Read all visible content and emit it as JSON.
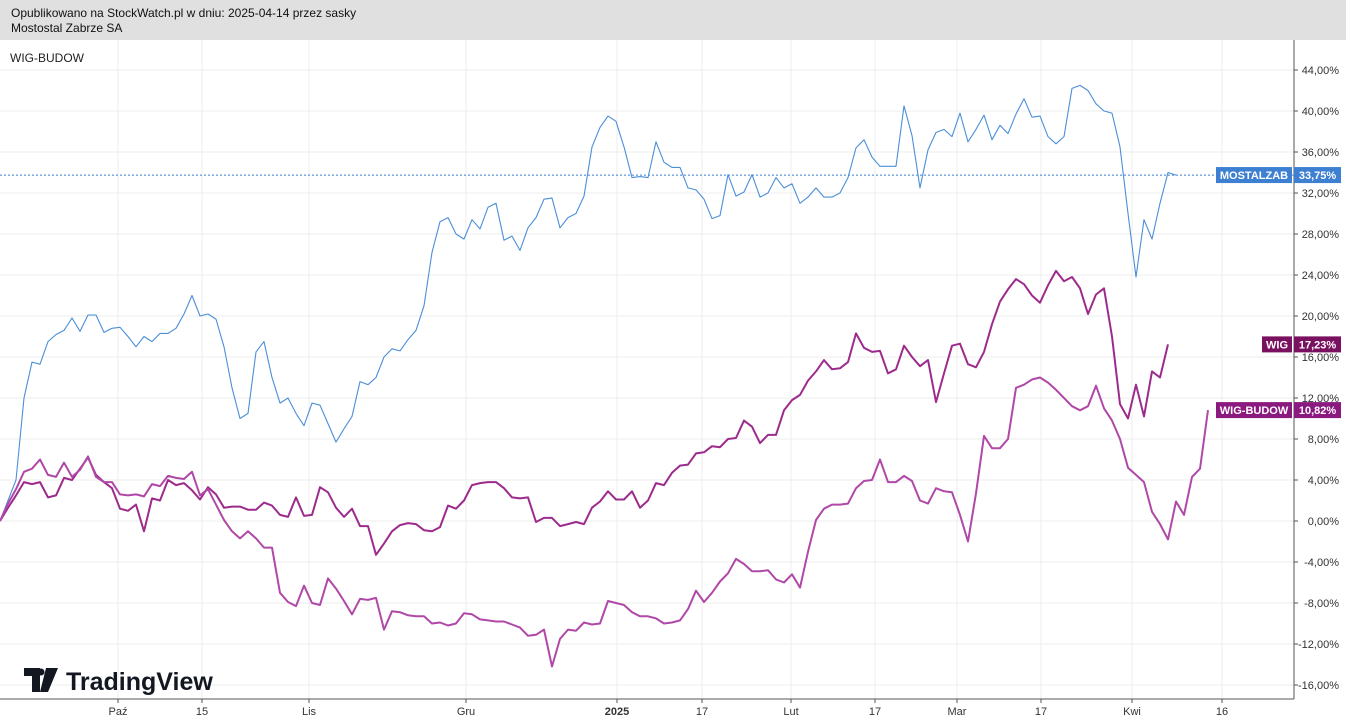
{
  "header": {
    "published": "Opublikowano na StockWatch.pl w dniu: 2025-04-14 przez sasky",
    "company": "Mostostal Zabrze SA"
  },
  "chart_label": "WIG-BUDOW",
  "watermark": "TradingView",
  "colors": {
    "mostalzab": "#4a8fd9",
    "wig": "#9c2b8c",
    "wigbudow": "#b048a8",
    "badge_mostalzab": "#3d7fd1",
    "badge_wig": "#7a1060",
    "badge_wigbudow": "#8b1a80"
  },
  "chart_data": {
    "type": "line",
    "title": "",
    "xlabel": "",
    "ylabel": "",
    "ylim": [
      -17,
      47
    ],
    "y_ticks": [
      "44,00%",
      "40,00%",
      "36,00%",
      "32,00%",
      "28,00%",
      "24,00%",
      "20,00%",
      "16,00%",
      "12,00%",
      "8,00%",
      "4,00%",
      "0,00%",
      "-4,00%",
      "-8,00%",
      "-12,00%",
      "-16,00%"
    ],
    "y_tick_values": [
      44,
      40,
      36,
      32,
      28,
      24,
      20,
      16,
      12,
      8,
      4,
      0,
      -4,
      -8,
      -12,
      -16
    ],
    "x_ticks": [
      {
        "label": "Paź",
        "index": 14,
        "bold": false
      },
      {
        "label": "15",
        "index": 24,
        "bold": false
      },
      {
        "label": "Lis",
        "index": 37,
        "bold": false
      },
      {
        "label": "Gru",
        "index": 56,
        "bold": false
      },
      {
        "label": "2025",
        "index": 75,
        "bold": true
      },
      {
        "label": "17",
        "index": 85,
        "bold": false
      },
      {
        "label": "Lut",
        "index": 96,
        "bold": false
      },
      {
        "label": "17",
        "index": 106,
        "bold": false
      },
      {
        "label": "Mar",
        "index": 116,
        "bold": false
      },
      {
        "label": "17",
        "index": 126,
        "bold": false
      },
      {
        "label": "Kwi",
        "index": 137,
        "bold": false
      },
      {
        "label": "16",
        "index": 148,
        "bold": false
      }
    ],
    "x_range": [
      0,
      157
    ],
    "series": [
      {
        "name": "MOSTALZAB",
        "last_label": "33,75%",
        "values": [
          0,
          2,
          4,
          12,
          15.5,
          15.3,
          17.5,
          18.2,
          18.6,
          19.8,
          18.5,
          20.1,
          20.1,
          18.4,
          18.8,
          18.9,
          18,
          17,
          18,
          17.5,
          18.3,
          18.3,
          18.8,
          20.2,
          22,
          20,
          20.2,
          19.7,
          17,
          13,
          10,
          10.5,
          16.5,
          17.5,
          14,
          11.5,
          12,
          10.5,
          9.3,
          11.5,
          11.3,
          9.5,
          7.7,
          9,
          10.2,
          13.6,
          13.3,
          14,
          16,
          16.8,
          16.6,
          17.7,
          18.6,
          21,
          26.2,
          29.2,
          29.6,
          28,
          27.5,
          29.4,
          28.5,
          30.6,
          31,
          27.4,
          27.8,
          26.4,
          28.6,
          29.6,
          31.4,
          31.5,
          28.6,
          29.6,
          30,
          31.7,
          36.5,
          38.4,
          39.5,
          39,
          36.5,
          33.5,
          33.6,
          33.5,
          37,
          35,
          34.5,
          34.5,
          32.5,
          32.3,
          31.4,
          29.5,
          29.8,
          33.8,
          31.7,
          32.1,
          33.8,
          31.6,
          32,
          33.5,
          32.5,
          32.9,
          31,
          31.6,
          32.5,
          31.6,
          31.6,
          32,
          33.5,
          36.4,
          37.2,
          35.5,
          34.6,
          34.6,
          34.6,
          40.5,
          37.6,
          32.5,
          36.2,
          37.9,
          38.2,
          37.5,
          39.8,
          37,
          38.2,
          39.6,
          37.2,
          38.6,
          37.8,
          39.7,
          41.2,
          39.4,
          39.5,
          37.5,
          36.8,
          37.5,
          42.2,
          42.5,
          42,
          40.7,
          40,
          39.8,
          36.5,
          30,
          23.8,
          29.4,
          27.5,
          31,
          34,
          33.75
        ]
      },
      {
        "name": "WIG",
        "last_label": "17,23%",
        "values": [
          0,
          1.3,
          2.5,
          3.8,
          3.6,
          3.8,
          2.3,
          2.5,
          4.2,
          4,
          5.1,
          6.2,
          4.5,
          3.8,
          3.2,
          1.2,
          1,
          1.6,
          -1,
          2.2,
          2,
          4,
          3.5,
          3.7,
          3,
          2.1,
          3.3,
          2.6,
          1.3,
          1.4,
          1.4,
          1.1,
          1.1,
          1.8,
          1.5,
          0.6,
          0.4,
          2.3,
          0.5,
          0.6,
          3.3,
          2.8,
          1.3,
          0.4,
          1.2,
          -0.5,
          -0.5,
          -3.3,
          -2.2,
          -1,
          -0.4,
          -0.2,
          -0.3,
          -0.9,
          -1,
          -0.6,
          1.5,
          1.2,
          2,
          3.5,
          3.7,
          3.8,
          3.8,
          3.2,
          2.3,
          2.2,
          2.3,
          -0.1,
          0.3,
          0.3,
          -0.5,
          -0.3,
          -0.1,
          -0.3,
          1.3,
          1.9,
          2.9,
          2.1,
          2.1,
          2.9,
          1.3,
          2,
          3.7,
          3.5,
          4.7,
          5.4,
          5.5,
          6.6,
          6.7,
          7.3,
          7.2,
          8,
          8.1,
          9.8,
          9.2,
          7.6,
          8.4,
          8.4,
          10.8,
          11.8,
          12.3,
          13.7,
          14.6,
          15.7,
          14.8,
          14.9,
          15.5,
          18.3,
          16.9,
          16.5,
          16.6,
          14.4,
          14.8,
          17.1,
          16,
          15.1,
          15.7,
          11.6,
          14.4,
          17.1,
          17.3,
          15.3,
          15,
          16.5,
          19.2,
          21.4,
          22.6,
          23.6,
          23.1,
          22,
          21.3,
          23,
          24.4,
          23.4,
          23.8,
          22.7,
          20.2,
          22.1,
          22.7,
          18,
          11.4,
          10,
          13.3,
          10.2,
          14.6,
          14,
          17.23
        ]
      },
      {
        "name": "WIG-BUDOW",
        "last_label": "10,82%",
        "values": [
          0,
          1.7,
          3.1,
          4.8,
          5.1,
          6,
          4.5,
          4.3,
          5.7,
          4.3,
          5,
          6.3,
          4.3,
          3.8,
          3.8,
          2.6,
          2.5,
          2.6,
          2.4,
          3.6,
          3.4,
          4.4,
          4.2,
          4.1,
          4.8,
          2.5,
          3.1,
          1.6,
          0.1,
          -1,
          -1.7,
          -1,
          -1.7,
          -2.6,
          -2.6,
          -7,
          -7.9,
          -8.3,
          -6.3,
          -8,
          -8.2,
          -5.6,
          -6.6,
          -7.8,
          -9.1,
          -7.6,
          -7.7,
          -7.5,
          -10.6,
          -8.8,
          -8.9,
          -9.2,
          -9.3,
          -9.3,
          -10,
          -9.9,
          -10.2,
          -10,
          -9,
          -9.1,
          -9.6,
          -9.7,
          -9.8,
          -9.8,
          -10.1,
          -10.4,
          -11.2,
          -11.1,
          -10.6,
          -14.2,
          -11.5,
          -10.6,
          -10.7,
          -9.9,
          -10.1,
          -10,
          -7.8,
          -8,
          -8.2,
          -8.9,
          -9.3,
          -9.3,
          -9.5,
          -10,
          -9.9,
          -9.7,
          -8.6,
          -6.8,
          -7.9,
          -7,
          -5.9,
          -5.1,
          -3.7,
          -4.2,
          -4.9,
          -4.9,
          -4.8,
          -5.7,
          -6,
          -5.2,
          -6.5,
          -3,
          0.1,
          1.2,
          1.6,
          1.6,
          1.7,
          3.2,
          3.9,
          4,
          6,
          3.8,
          3.8,
          4.4,
          3.9,
          2,
          1.7,
          3.2,
          2.9,
          2.8,
          0.6,
          -2,
          2.7,
          8.3,
          7.1,
          7.1,
          8,
          13,
          13.3,
          13.8,
          14,
          13.5,
          12.8,
          12,
          11.2,
          10.8,
          11.2,
          13.2,
          11,
          9.8,
          8,
          5.2,
          4.5,
          3.8,
          0.9,
          -0.3,
          -1.8,
          1.9,
          0.6,
          4.3,
          5.1,
          10.82
        ]
      }
    ]
  }
}
